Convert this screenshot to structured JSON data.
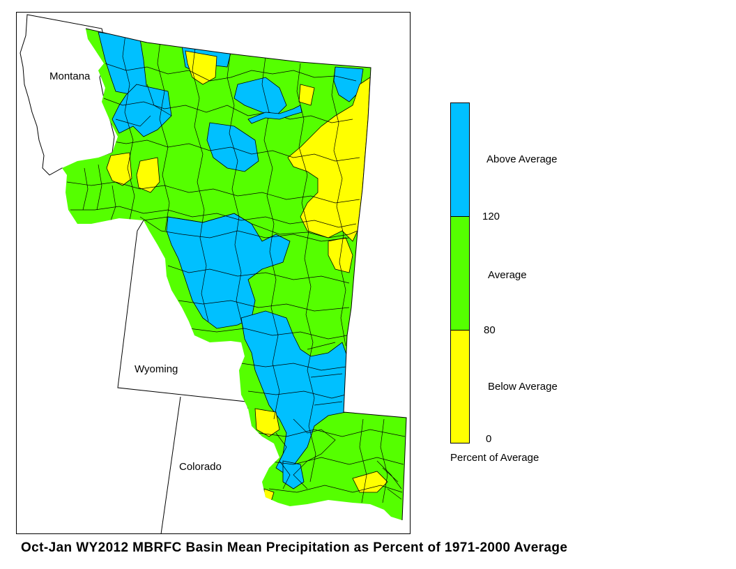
{
  "map": {
    "states": [
      {
        "id": "montana",
        "label": "Montana"
      },
      {
        "id": "wyoming",
        "label": "Wyoming"
      },
      {
        "id": "colorado",
        "label": "Colorado"
      }
    ],
    "colors": {
      "above": "#00c0ff",
      "average": "#55ff00",
      "below": "#ffff00",
      "boundary": "#000000",
      "background": "#ffffff"
    }
  },
  "legend": {
    "classes": [
      {
        "label": "Above Average",
        "color": "#00c0ff",
        "range": [
          120,
          null
        ]
      },
      {
        "label": "Average",
        "color": "#55ff00",
        "range": [
          80,
          120
        ]
      },
      {
        "label": "Below Average",
        "color": "#ffff00",
        "range": [
          0,
          80
        ]
      }
    ],
    "thresholds": [
      "120",
      "80",
      "0"
    ],
    "caption": "Percent of Average"
  },
  "title": "Oct-Jan WY2012 MBRFC Basin Mean Precipitation as Percent of 1971-2000 Average"
}
